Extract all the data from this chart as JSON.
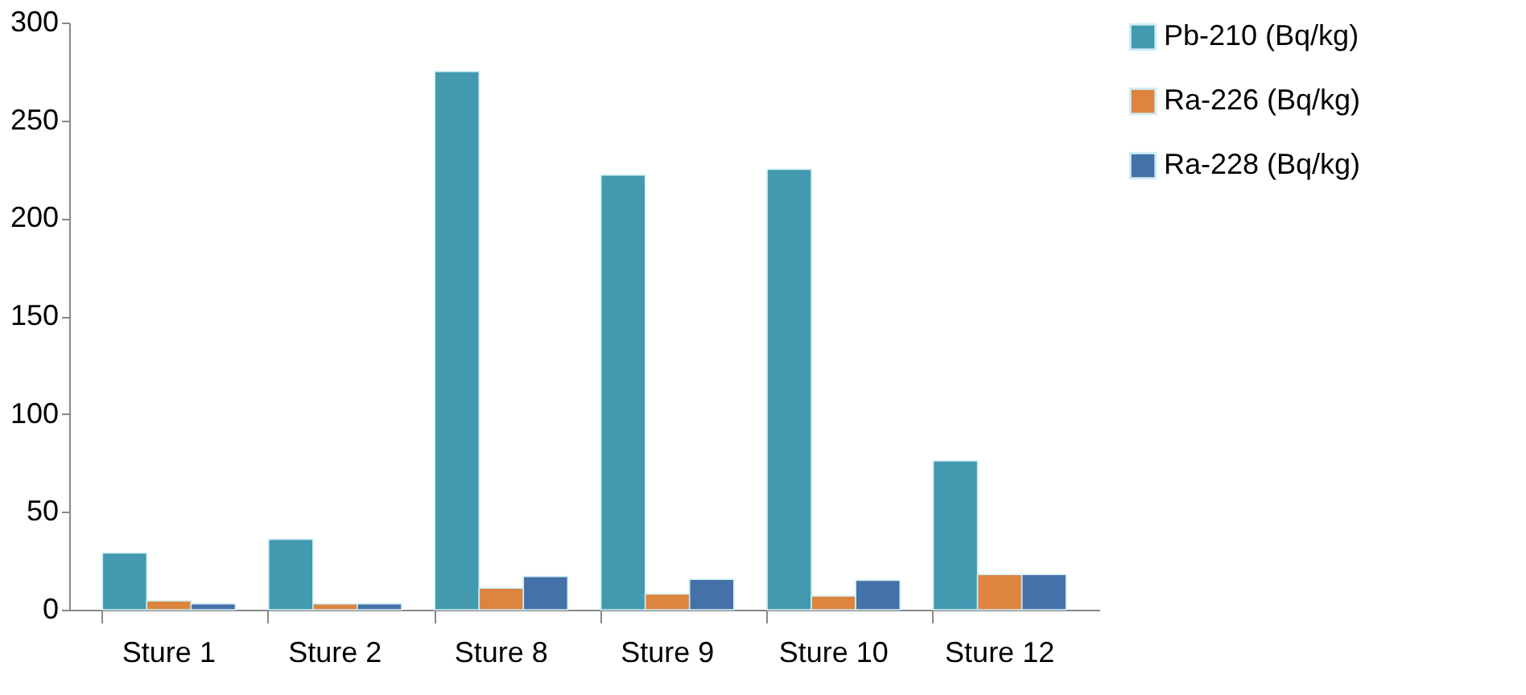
{
  "chart_data": {
    "type": "bar",
    "categories": [
      "Sture 1",
      "Sture 2",
      "Sture 8",
      "Sture 9",
      "Sture 10",
      "Sture 12"
    ],
    "series": [
      {
        "name": "Pb-210 (Bq/kg)",
        "color": "#4299b0",
        "values": [
          29,
          36,
          275,
          222,
          225,
          76
        ]
      },
      {
        "name": "Ra-226 (Bq/kg)",
        "color": "#dd843f",
        "values": [
          4.5,
          3,
          11,
          8,
          7,
          18
        ]
      },
      {
        "name": "Ra-228 (Bq/kg)",
        "color": "#4471a8",
        "values": [
          3,
          3,
          17,
          15.5,
          15,
          18
        ]
      }
    ],
    "ylim": [
      0,
      300
    ],
    "yticks": [
      0,
      50,
      100,
      150,
      200,
      250,
      300
    ],
    "grid": false,
    "legend": "right"
  }
}
